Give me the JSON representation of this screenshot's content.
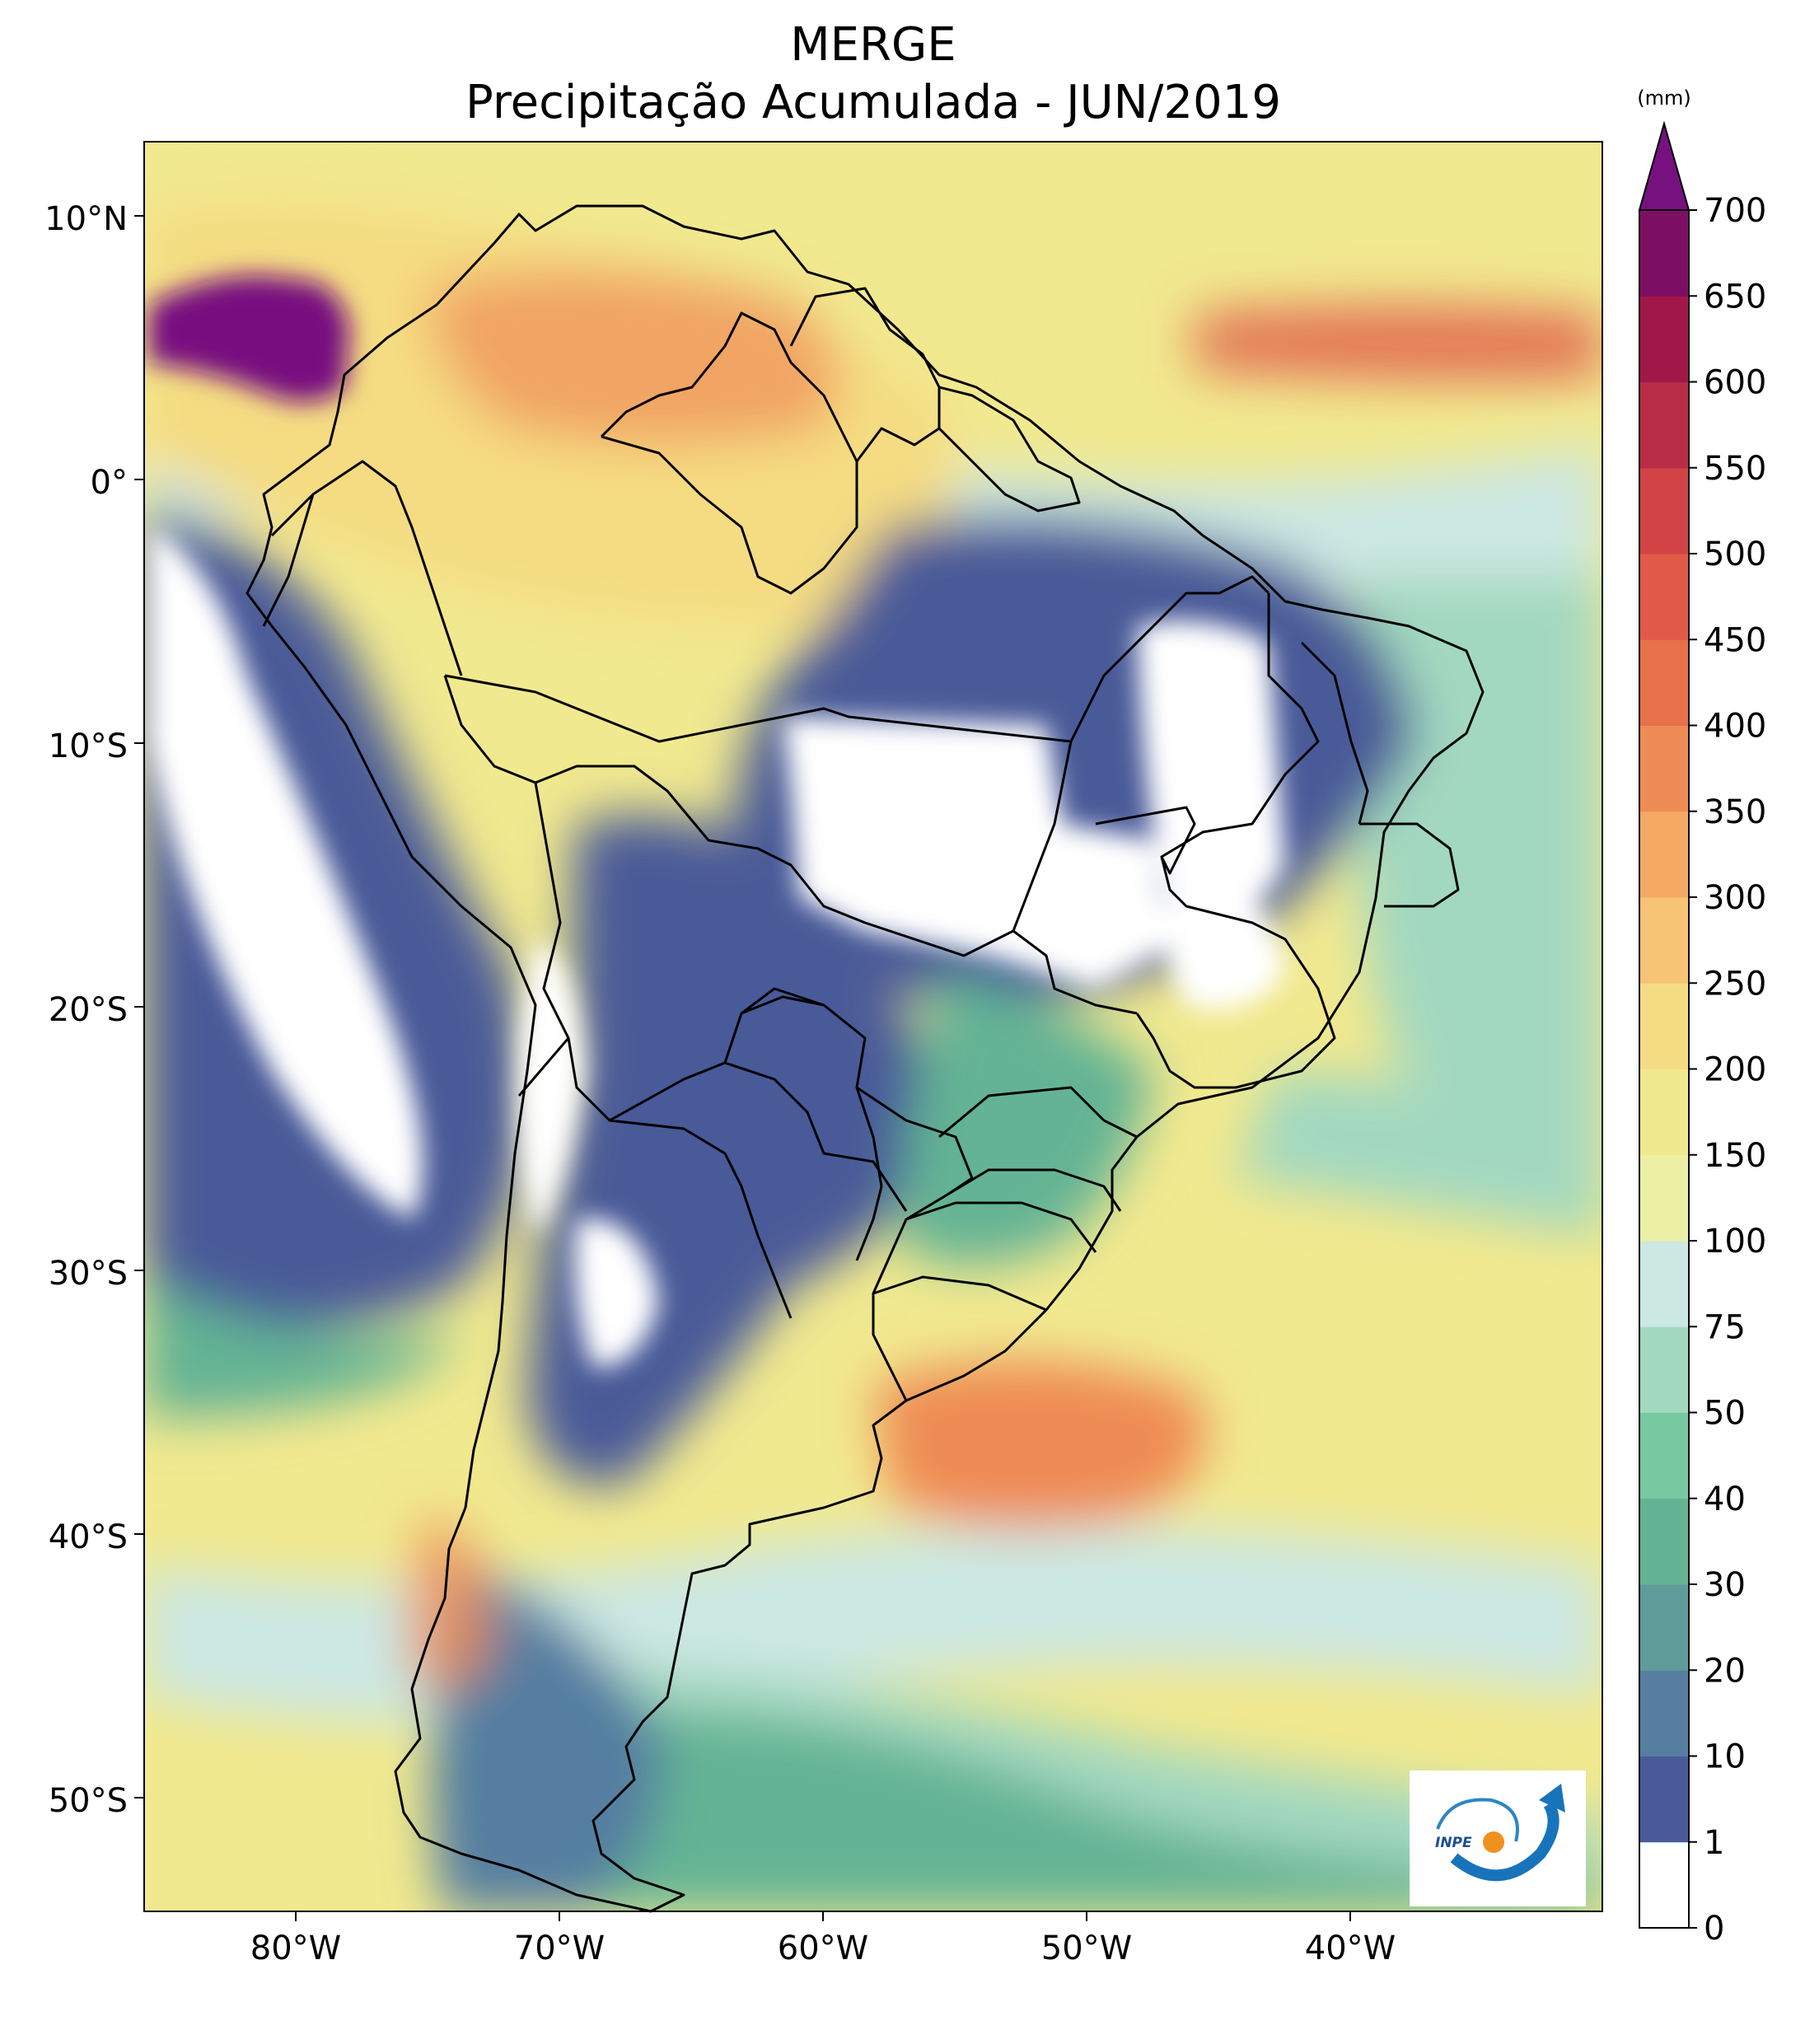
{
  "title": "MERGE",
  "subtitle": "Precipitação Acumulada - JUN/2019",
  "lat_labels": [
    "10°N",
    "0°",
    "10°S",
    "20°S",
    "30°S",
    "40°S",
    "50°S"
  ],
  "lon_labels": [
    "80°W",
    "70°W",
    "60°W",
    "50°W",
    "40°W"
  ],
  "colorbar": {
    "unit": "(mm)",
    "levels": [
      "0",
      "1",
      "10",
      "20",
      "30",
      "40",
      "50",
      "75",
      "100",
      "150",
      "200",
      "250",
      "300",
      "350",
      "400",
      "450",
      "500",
      "550",
      "600",
      "650",
      "700"
    ],
    "colors": [
      "#ffffff",
      "#4a5a98",
      "#557ea0",
      "#5f9c99",
      "#64b394",
      "#76c9a0",
      "#a3d8c0",
      "#cce8e3",
      "#ecf0a5",
      "#f1e98f",
      "#f5dc82",
      "#f6c474",
      "#f4aa62",
      "#ef8b55",
      "#e8704b",
      "#e05a47",
      "#d24346",
      "#b82c46",
      "#a2174a",
      "#7c0e63"
    ],
    "extend_color": "#77117f"
  },
  "logo": {
    "text": "INPE"
  },
  "map_colors": {
    "ocean_base": "#f1e98f",
    "dry": "#ffffff",
    "low": "#4a5a98",
    "mid": "#64b394",
    "green_light": "#a3d8c0",
    "high": "#ef8b55",
    "peak": "#77117f"
  }
}
